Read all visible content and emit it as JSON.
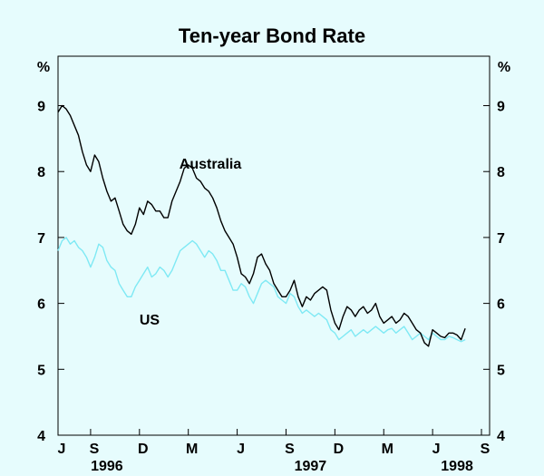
{
  "chart_data": {
    "type": "line",
    "title": "Ten-year Bond Rate",
    "y_unit_left": "%",
    "y_unit_right": "%",
    "ylim": [
      4,
      9.75
    ],
    "yticks": [
      4,
      5,
      6,
      7,
      8,
      9
    ],
    "xlim": [
      0,
      26.5
    ],
    "x_month_ticks": [
      {
        "label": "J",
        "m": 0
      },
      {
        "label": "S",
        "m": 2
      },
      {
        "label": "D",
        "m": 5
      },
      {
        "label": "M",
        "m": 8
      },
      {
        "label": "J",
        "m": 11
      },
      {
        "label": "S",
        "m": 14
      },
      {
        "label": "D",
        "m": 17
      },
      {
        "label": "M",
        "m": 20
      },
      {
        "label": "J",
        "m": 23
      },
      {
        "label": "S",
        "m": 26
      }
    ],
    "x_year_labels": [
      {
        "label": "1996",
        "m": 3
      },
      {
        "label": "1997",
        "m": 15.5
      },
      {
        "label": "1998",
        "m": 24.5
      }
    ],
    "series": [
      {
        "name": "Australia",
        "color": "#000000",
        "points": [
          [
            0.0,
            8.9
          ],
          [
            0.25,
            9.0
          ],
          [
            0.5,
            8.95
          ],
          [
            0.75,
            8.85
          ],
          [
            1.0,
            8.7
          ],
          [
            1.25,
            8.55
          ],
          [
            1.5,
            8.3
          ],
          [
            1.75,
            8.1
          ],
          [
            2.0,
            8.0
          ],
          [
            2.25,
            8.25
          ],
          [
            2.5,
            8.15
          ],
          [
            2.75,
            7.9
          ],
          [
            3.0,
            7.7
          ],
          [
            3.25,
            7.55
          ],
          [
            3.5,
            7.6
          ],
          [
            3.75,
            7.4
          ],
          [
            4.0,
            7.2
          ],
          [
            4.25,
            7.1
          ],
          [
            4.5,
            7.05
          ],
          [
            4.75,
            7.2
          ],
          [
            5.0,
            7.45
          ],
          [
            5.25,
            7.35
          ],
          [
            5.5,
            7.55
          ],
          [
            5.75,
            7.5
          ],
          [
            6.0,
            7.4
          ],
          [
            6.25,
            7.4
          ],
          [
            6.5,
            7.3
          ],
          [
            6.75,
            7.3
          ],
          [
            7.0,
            7.55
          ],
          [
            7.25,
            7.7
          ],
          [
            7.5,
            7.85
          ],
          [
            7.75,
            8.05
          ],
          [
            8.0,
            8.1
          ],
          [
            8.25,
            8.05
          ],
          [
            8.5,
            7.9
          ],
          [
            8.75,
            7.85
          ],
          [
            9.0,
            7.75
          ],
          [
            9.25,
            7.7
          ],
          [
            9.5,
            7.6
          ],
          [
            9.75,
            7.45
          ],
          [
            10.0,
            7.25
          ],
          [
            10.25,
            7.1
          ],
          [
            10.5,
            7.0
          ],
          [
            10.75,
            6.9
          ],
          [
            11.0,
            6.7
          ],
          [
            11.25,
            6.45
          ],
          [
            11.5,
            6.4
          ],
          [
            11.75,
            6.3
          ],
          [
            12.0,
            6.45
          ],
          [
            12.25,
            6.7
          ],
          [
            12.5,
            6.75
          ],
          [
            12.75,
            6.6
          ],
          [
            13.0,
            6.5
          ],
          [
            13.25,
            6.3
          ],
          [
            13.5,
            6.2
          ],
          [
            13.75,
            6.1
          ],
          [
            14.0,
            6.1
          ],
          [
            14.25,
            6.2
          ],
          [
            14.5,
            6.35
          ],
          [
            14.75,
            6.1
          ],
          [
            15.0,
            5.95
          ],
          [
            15.25,
            6.1
          ],
          [
            15.5,
            6.05
          ],
          [
            15.75,
            6.15
          ],
          [
            16.0,
            6.2
          ],
          [
            16.25,
            6.25
          ],
          [
            16.5,
            6.2
          ],
          [
            16.75,
            5.9
          ],
          [
            17.0,
            5.7
          ],
          [
            17.25,
            5.6
          ],
          [
            17.5,
            5.8
          ],
          [
            17.75,
            5.95
          ],
          [
            18.0,
            5.9
          ],
          [
            18.25,
            5.8
          ],
          [
            18.5,
            5.9
          ],
          [
            18.75,
            5.95
          ],
          [
            19.0,
            5.85
          ],
          [
            19.25,
            5.9
          ],
          [
            19.5,
            6.0
          ],
          [
            19.75,
            5.8
          ],
          [
            20.0,
            5.7
          ],
          [
            20.25,
            5.75
          ],
          [
            20.5,
            5.8
          ],
          [
            20.75,
            5.7
          ],
          [
            21.0,
            5.75
          ],
          [
            21.25,
            5.85
          ],
          [
            21.5,
            5.8
          ],
          [
            21.75,
            5.7
          ],
          [
            22.0,
            5.6
          ],
          [
            22.25,
            5.55
          ],
          [
            22.5,
            5.4
          ],
          [
            22.75,
            5.35
          ],
          [
            23.0,
            5.6
          ],
          [
            23.25,
            5.55
          ],
          [
            23.5,
            5.5
          ],
          [
            23.75,
            5.48
          ],
          [
            24.0,
            5.55
          ],
          [
            24.25,
            5.55
          ],
          [
            24.5,
            5.52
          ],
          [
            24.75,
            5.45
          ],
          [
            25.0,
            5.62
          ]
        ]
      },
      {
        "name": "US",
        "color": "#7fe9f4",
        "points": [
          [
            0.0,
            6.8
          ],
          [
            0.25,
            6.95
          ],
          [
            0.5,
            7.0
          ],
          [
            0.75,
            6.9
          ],
          [
            1.0,
            6.95
          ],
          [
            1.25,
            6.85
          ],
          [
            1.5,
            6.8
          ],
          [
            1.75,
            6.7
          ],
          [
            2.0,
            6.55
          ],
          [
            2.25,
            6.7
          ],
          [
            2.5,
            6.9
          ],
          [
            2.75,
            6.85
          ],
          [
            3.0,
            6.65
          ],
          [
            3.25,
            6.55
          ],
          [
            3.5,
            6.5
          ],
          [
            3.75,
            6.3
          ],
          [
            4.0,
            6.2
          ],
          [
            4.25,
            6.1
          ],
          [
            4.5,
            6.1
          ],
          [
            4.75,
            6.25
          ],
          [
            5.0,
            6.35
          ],
          [
            5.25,
            6.45
          ],
          [
            5.5,
            6.55
          ],
          [
            5.75,
            6.4
          ],
          [
            6.0,
            6.45
          ],
          [
            6.25,
            6.55
          ],
          [
            6.5,
            6.5
          ],
          [
            6.75,
            6.4
          ],
          [
            7.0,
            6.5
          ],
          [
            7.25,
            6.65
          ],
          [
            7.5,
            6.8
          ],
          [
            7.75,
            6.85
          ],
          [
            8.0,
            6.9
          ],
          [
            8.25,
            6.95
          ],
          [
            8.5,
            6.9
          ],
          [
            8.75,
            6.8
          ],
          [
            9.0,
            6.7
          ],
          [
            9.25,
            6.8
          ],
          [
            9.5,
            6.75
          ],
          [
            9.75,
            6.65
          ],
          [
            10.0,
            6.5
          ],
          [
            10.25,
            6.5
          ],
          [
            10.5,
            6.35
          ],
          [
            10.75,
            6.2
          ],
          [
            11.0,
            6.2
          ],
          [
            11.25,
            6.3
          ],
          [
            11.5,
            6.25
          ],
          [
            11.75,
            6.1
          ],
          [
            12.0,
            6.0
          ],
          [
            12.25,
            6.15
          ],
          [
            12.5,
            6.3
          ],
          [
            12.75,
            6.35
          ],
          [
            13.0,
            6.3
          ],
          [
            13.25,
            6.25
          ],
          [
            13.5,
            6.1
          ],
          [
            13.75,
            6.05
          ],
          [
            14.0,
            6.0
          ],
          [
            14.25,
            6.15
          ],
          [
            14.5,
            6.1
          ],
          [
            14.75,
            5.95
          ],
          [
            15.0,
            5.85
          ],
          [
            15.25,
            5.9
          ],
          [
            15.5,
            5.85
          ],
          [
            15.75,
            5.8
          ],
          [
            16.0,
            5.85
          ],
          [
            16.25,
            5.8
          ],
          [
            16.5,
            5.75
          ],
          [
            16.75,
            5.6
          ],
          [
            17.0,
            5.55
          ],
          [
            17.25,
            5.45
          ],
          [
            17.5,
            5.5
          ],
          [
            17.75,
            5.55
          ],
          [
            18.0,
            5.6
          ],
          [
            18.25,
            5.5
          ],
          [
            18.5,
            5.55
          ],
          [
            18.75,
            5.6
          ],
          [
            19.0,
            5.55
          ],
          [
            19.25,
            5.6
          ],
          [
            19.5,
            5.65
          ],
          [
            19.75,
            5.6
          ],
          [
            20.0,
            5.55
          ],
          [
            20.25,
            5.6
          ],
          [
            20.5,
            5.62
          ],
          [
            20.75,
            5.55
          ],
          [
            21.0,
            5.6
          ],
          [
            21.25,
            5.65
          ],
          [
            21.5,
            5.55
          ],
          [
            21.75,
            5.45
          ],
          [
            22.0,
            5.5
          ],
          [
            22.25,
            5.55
          ],
          [
            22.5,
            5.5
          ],
          [
            22.75,
            5.45
          ],
          [
            23.0,
            5.55
          ],
          [
            23.25,
            5.5
          ],
          [
            23.5,
            5.45
          ],
          [
            23.75,
            5.45
          ],
          [
            24.0,
            5.5
          ],
          [
            24.25,
            5.48
          ],
          [
            24.5,
            5.45
          ],
          [
            24.75,
            5.42
          ],
          [
            25.0,
            5.45
          ]
        ]
      }
    ],
    "annotations": [
      {
        "text": "Australia",
        "series": "Australia"
      },
      {
        "text": "US",
        "series": "US"
      }
    ]
  },
  "colors": {
    "background": "#e6fcfd",
    "axis": "#000000"
  }
}
